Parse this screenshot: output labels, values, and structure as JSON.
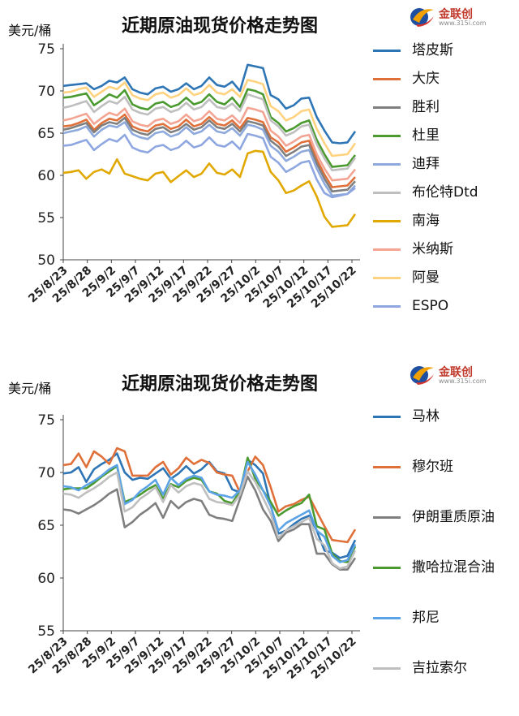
{
  "charts": [
    {
      "title": "近期原油现货价格走势图",
      "unit": "美元/桶",
      "logo": {
        "text": "金联创",
        "sub": "www.315i.com"
      }
    },
    {
      "title": "近期原油现货价格走势图",
      "unit": "美元/桶",
      "logo": {
        "text": "金联创",
        "sub": "www.315i.com"
      }
    }
  ],
  "chart_data": [
    {
      "type": "line",
      "title": "近期原油现货价格走势图",
      "ylabel": "美元/桶",
      "ylim": [
        50,
        75
      ],
      "yticks": [
        50,
        55,
        60,
        65,
        70,
        75
      ],
      "xtick_labels": [
        "25/8/23",
        "25/8/28",
        "25/9/2",
        "25/9/7",
        "25/9/12",
        "25/9/17",
        "25/9/22",
        "25/9/27",
        "25/10/2",
        "25/10/7",
        "25/10/12",
        "25/10/17",
        "25/10/22"
      ],
      "grid": false,
      "legend_position": "right",
      "series": [
        {
          "name": "塔皮斯",
          "color": "#2e75b6",
          "values": [
            70.6,
            70.7,
            70.8,
            70.9,
            70.2,
            70.6,
            71.2,
            71.0,
            71.6,
            70.2,
            69.8,
            69.6,
            70.3,
            70.5,
            69.9,
            70.2,
            70.9,
            70.2,
            70.6,
            71.6,
            70.7,
            70.5,
            71.1,
            70.0,
            73.1,
            72.9,
            72.7,
            69.5,
            69.0,
            67.9,
            68.3,
            69.1,
            69.2,
            66.9,
            65.3,
            63.9,
            63.8,
            63.9,
            65.2
          ]
        },
        {
          "name": "大庆",
          "color": "#e0703a",
          "values": [
            65.8,
            65.9,
            66.2,
            66.6,
            65.4,
            66.2,
            66.7,
            66.5,
            67.2,
            65.8,
            65.4,
            65.2,
            65.9,
            66.1,
            65.5,
            65.8,
            66.6,
            65.8,
            66.1,
            66.9,
            66.1,
            65.9,
            66.5,
            65.6,
            66.8,
            66.6,
            66.3,
            64.5,
            63.9,
            62.8,
            63.3,
            63.9,
            64.1,
            61.9,
            60.1,
            58.6,
            58.7,
            58.8,
            59.8
          ]
        },
        {
          "name": "胜利",
          "color": "#7f7f7f",
          "values": [
            65.4,
            65.6,
            65.9,
            66.2,
            65.1,
            65.9,
            66.3,
            66.1,
            66.8,
            65.4,
            65.0,
            64.8,
            65.5,
            65.7,
            65.1,
            65.4,
            66.1,
            65.4,
            65.7,
            66.5,
            65.7,
            65.5,
            66.1,
            65.2,
            66.4,
            66.2,
            65.9,
            64.1,
            63.4,
            62.3,
            62.8,
            63.4,
            63.6,
            61.4,
            59.6,
            58.1,
            58.2,
            58.3,
            59.3
          ]
        },
        {
          "name": "杜里",
          "color": "#4a9a2f",
          "values": [
            69.2,
            69.3,
            69.5,
            69.7,
            68.3,
            68.9,
            69.6,
            69.2,
            70.1,
            68.4,
            68.0,
            67.8,
            68.5,
            68.7,
            68.1,
            68.4,
            69.2,
            68.4,
            68.7,
            69.6,
            68.7,
            68.4,
            69.2,
            68.1,
            70.2,
            70.0,
            69.6,
            66.9,
            66.2,
            65.2,
            65.6,
            66.2,
            66.5,
            64.2,
            62.5,
            61.0,
            61.1,
            61.2,
            62.4
          ]
        },
        {
          "name": "迪拜",
          "color": "#8ea9db",
          "values": [
            65.0,
            65.2,
            65.4,
            65.8,
            64.6,
            65.4,
            65.9,
            65.7,
            66.3,
            64.9,
            64.5,
            64.3,
            65.0,
            65.2,
            64.6,
            64.9,
            65.7,
            64.9,
            65.2,
            66.0,
            65.2,
            65.0,
            65.6,
            64.7,
            66.0,
            65.8,
            65.4,
            63.5,
            62.8,
            61.7,
            62.2,
            62.8,
            63.0,
            60.8,
            59.0,
            57.6,
            57.7,
            57.8,
            58.8
          ]
        },
        {
          "name": "布伦特Dtd",
          "color": "#bfbfbf",
          "values": [
            68.0,
            68.2,
            68.5,
            68.8,
            67.5,
            68.2,
            68.8,
            68.5,
            69.3,
            67.8,
            67.4,
            67.2,
            67.9,
            68.1,
            67.5,
            67.8,
            68.6,
            67.8,
            68.1,
            69.0,
            68.1,
            67.9,
            68.5,
            67.6,
            69.6,
            69.3,
            69.0,
            66.5,
            65.8,
            64.7,
            65.1,
            65.8,
            66.0,
            63.7,
            62.0,
            60.6,
            60.7,
            60.8,
            62.1
          ]
        },
        {
          "name": "南海",
          "color": "#e1a800",
          "values": [
            60.3,
            60.4,
            60.6,
            59.6,
            60.4,
            60.7,
            60.2,
            61.9,
            60.2,
            59.9,
            59.6,
            59.4,
            60.2,
            60.4,
            59.2,
            59.9,
            60.6,
            59.8,
            60.2,
            61.4,
            60.3,
            60.1,
            60.7,
            59.8,
            62.6,
            62.9,
            62.8,
            60.4,
            59.4,
            57.9,
            58.2,
            58.8,
            59.3,
            57.5,
            55.1,
            53.9,
            54.0,
            54.1,
            55.4
          ]
        },
        {
          "name": "米纳斯",
          "color": "#f4a493",
          "values": [
            66.5,
            66.7,
            67.0,
            67.3,
            66.1,
            66.8,
            67.4,
            67.1,
            67.9,
            66.4,
            66.0,
            65.8,
            66.5,
            66.7,
            66.1,
            66.4,
            67.2,
            66.4,
            66.7,
            67.6,
            66.7,
            66.5,
            67.1,
            66.2,
            68.0,
            67.8,
            67.5,
            65.3,
            64.6,
            63.5,
            64.0,
            64.6,
            64.8,
            62.5,
            60.8,
            59.4,
            59.5,
            59.6,
            60.7
          ]
        },
        {
          "name": "阿曼",
          "color": "#ffd27f",
          "values": [
            69.8,
            69.9,
            70.2,
            70.4,
            69.3,
            69.9,
            70.5,
            70.2,
            71.0,
            69.5,
            69.1,
            68.9,
            69.6,
            69.8,
            69.2,
            69.5,
            70.3,
            69.5,
            69.8,
            70.7,
            69.8,
            69.6,
            70.2,
            69.3,
            71.3,
            71.1,
            70.8,
            68.2,
            67.6,
            66.5,
            66.9,
            67.6,
            67.8,
            65.5,
            63.8,
            62.3,
            62.4,
            62.5,
            63.8
          ]
        },
        {
          "name": "ESPO",
          "color": "#8fa7e0",
          "values": [
            63.5,
            63.6,
            63.9,
            64.2,
            63.0,
            63.7,
            64.3,
            64.0,
            64.8,
            63.3,
            62.9,
            62.7,
            63.4,
            63.6,
            63.0,
            63.3,
            64.1,
            63.3,
            63.6,
            64.5,
            63.6,
            63.4,
            64.0,
            63.1,
            64.9,
            64.7,
            64.4,
            62.2,
            61.5,
            60.4,
            60.9,
            61.5,
            61.7,
            59.5,
            57.9,
            57.4,
            57.6,
            57.8,
            58.5
          ]
        }
      ]
    },
    {
      "type": "line",
      "title": "近期原油现货价格走势图",
      "ylabel": "美元/桶",
      "ylim": [
        55,
        75
      ],
      "yticks": [
        55,
        60,
        65,
        70,
        75
      ],
      "xtick_labels": [
        "25/8/23",
        "25/8/28",
        "25/9/2",
        "25/9/7",
        "25/9/12",
        "25/9/17",
        "25/9/22",
        "25/9/27",
        "25/10/2",
        "25/10/7",
        "25/10/12",
        "25/10/17",
        "25/10/22"
      ],
      "grid": false,
      "legend_position": "right",
      "series": [
        {
          "name": "马林",
          "color": "#2e75b6",
          "values": [
            69.9,
            70.0,
            70.5,
            69.1,
            70.3,
            70.8,
            71.2,
            71.8,
            70.0,
            69.3,
            69.5,
            69.4,
            69.9,
            70.4,
            69.4,
            69.9,
            70.6,
            69.9,
            70.3,
            71.0,
            70.1,
            69.9,
            68.4,
            68.1,
            71.2,
            70.7,
            69.9,
            66.9,
            64.2,
            64.5,
            65.1,
            65.6,
            65.9,
            64.5,
            62.6,
            62.4,
            61.9,
            62.1,
            63.6
          ]
        },
        {
          "name": "穆尔班",
          "color": "#e0703a",
          "values": [
            70.7,
            70.8,
            71.8,
            70.5,
            72.0,
            71.5,
            70.8,
            72.3,
            72.0,
            69.7,
            69.7,
            69.7,
            70.5,
            71.0,
            69.8,
            70.4,
            71.4,
            70.8,
            71.2,
            70.9,
            70.0,
            69.8,
            69.7,
            68.1,
            70.1,
            71.5,
            70.7,
            68.6,
            66.3,
            66.8,
            67.0,
            67.4,
            67.7,
            66.3,
            64.9,
            63.6,
            63.5,
            63.4,
            64.6
          ]
        },
        {
          "name": "伊朗重质原油",
          "color": "#7f7f7f",
          "values": [
            66.5,
            66.4,
            66.1,
            66.5,
            66.9,
            67.4,
            68.0,
            68.4,
            64.8,
            65.3,
            66.0,
            66.5,
            67.1,
            65.7,
            67.3,
            66.6,
            67.2,
            67.5,
            67.3,
            66.0,
            65.7,
            65.6,
            65.4,
            67.5,
            69.6,
            68.3,
            66.5,
            65.4,
            63.5,
            64.3,
            64.6,
            65.1,
            65.1,
            62.3,
            62.3,
            61.3,
            60.8,
            60.8,
            61.9
          ]
        },
        {
          "name": "撒哈拉混合油",
          "color": "#4a9a2f",
          "values": [
            68.4,
            68.5,
            68.5,
            68.5,
            69.0,
            69.6,
            70.1,
            70.6,
            67.2,
            67.5,
            67.9,
            68.4,
            68.8,
            67.5,
            68.9,
            68.6,
            69.2,
            69.5,
            69.3,
            68.2,
            68.0,
            67.3,
            67.1,
            68.2,
            71.4,
            69.4,
            68.3,
            67.2,
            65.9,
            66.4,
            66.8,
            67.1,
            67.9,
            64.9,
            64.6,
            62.3,
            61.6,
            61.5,
            63.0
          ]
        },
        {
          "name": "邦尼",
          "color": "#5ba3e6",
          "values": [
            68.7,
            68.6,
            68.3,
            68.8,
            69.2,
            69.7,
            70.3,
            70.7,
            67.0,
            67.4,
            68.2,
            68.7,
            69.3,
            67.9,
            69.5,
            68.8,
            69.4,
            69.7,
            69.5,
            68.2,
            67.9,
            67.8,
            67.6,
            68.3,
            71.0,
            69.8,
            68.3,
            66.8,
            64.5,
            65.2,
            65.6,
            66.0,
            66.4,
            64.5,
            63.9,
            62.1,
            61.5,
            61.7,
            63.2
          ]
        },
        {
          "name": "吉拉索尔",
          "color": "#bfbfbf",
          "values": [
            68.0,
            67.9,
            67.6,
            68.1,
            68.5,
            69.0,
            69.6,
            70.0,
            66.3,
            66.7,
            67.5,
            68.0,
            68.6,
            67.2,
            68.8,
            68.1,
            68.7,
            69.0,
            68.8,
            67.5,
            67.2,
            67.1,
            66.9,
            67.9,
            70.1,
            69.1,
            67.6,
            66.1,
            63.8,
            64.5,
            64.9,
            65.3,
            65.7,
            63.7,
            63.1,
            61.4,
            60.9,
            61.1,
            62.6
          ]
        }
      ]
    }
  ]
}
